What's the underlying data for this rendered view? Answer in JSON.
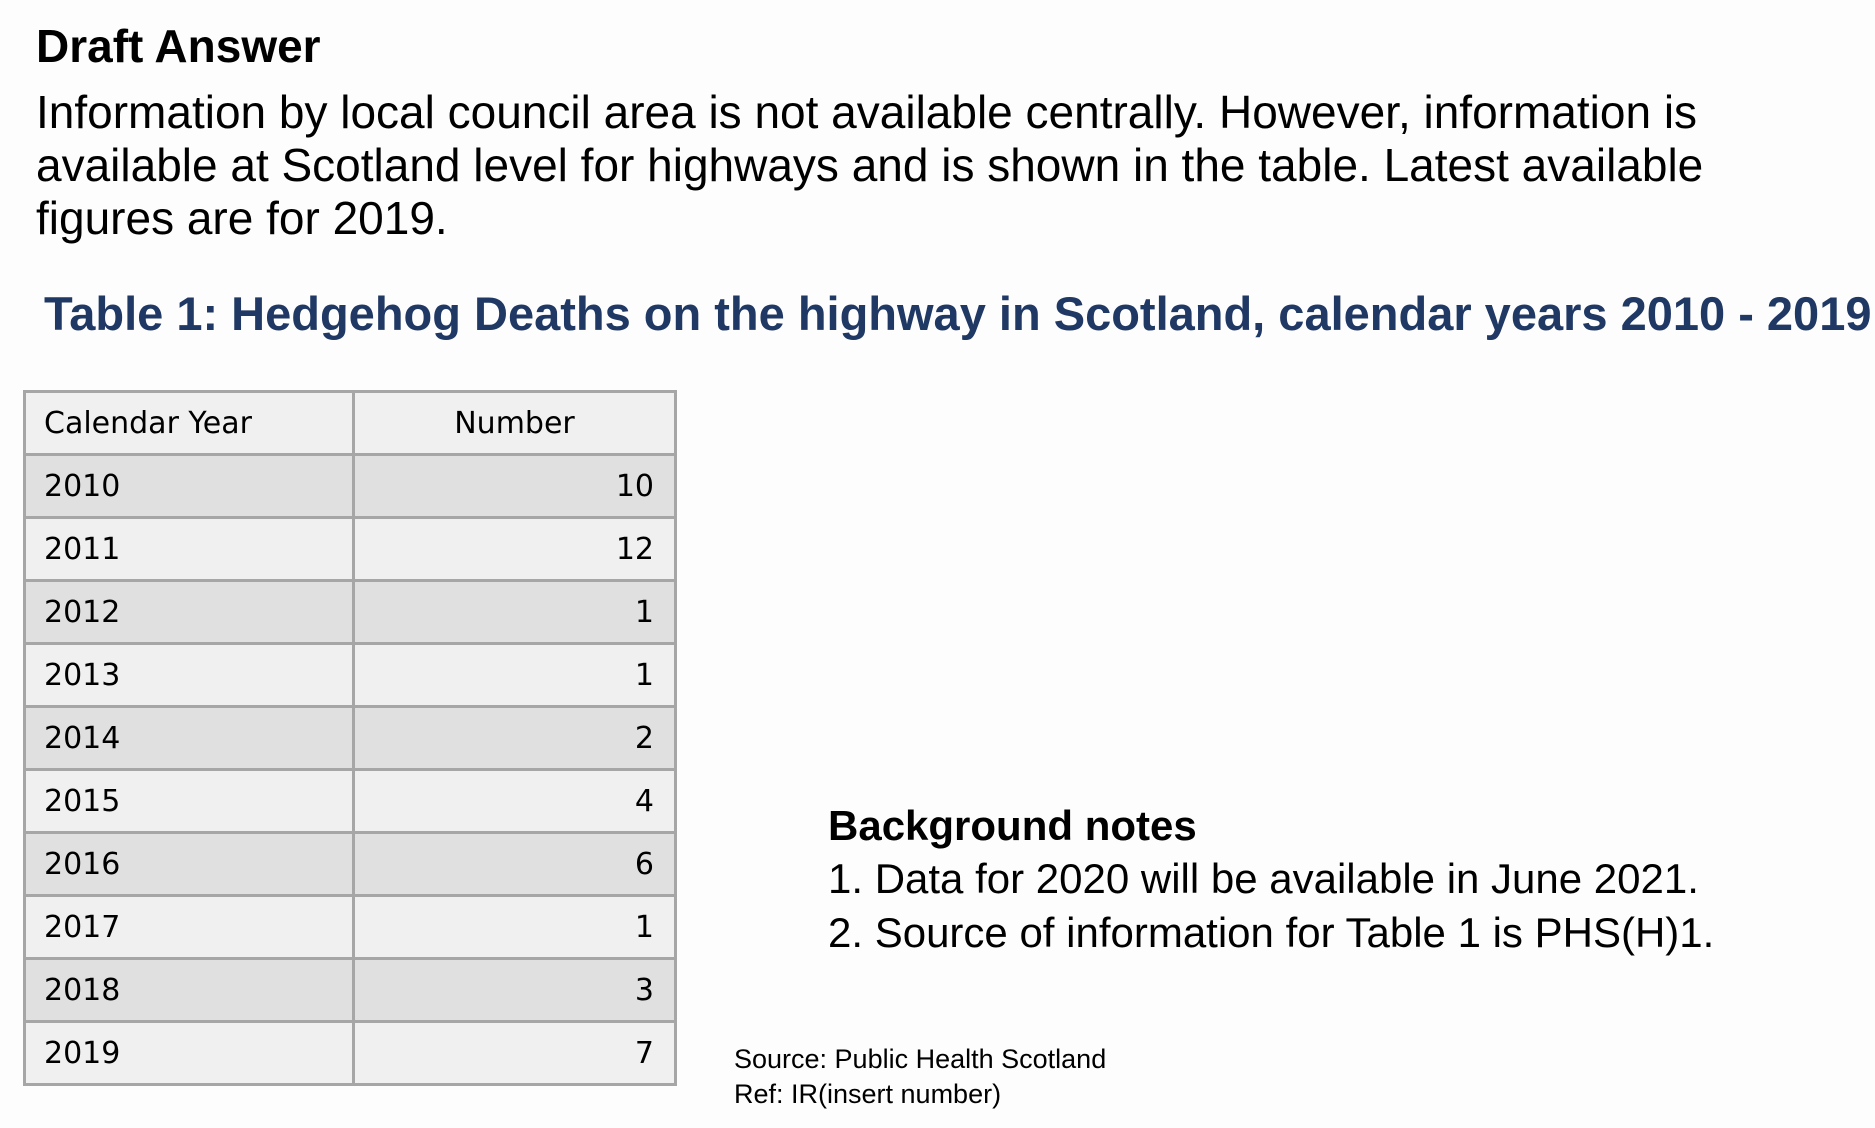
{
  "heading": "Draft Answer",
  "intro": "Information by local council area is not available centrally. However, information is available at Scotland level for highways and is shown in the table. Latest available figures are for 2019.",
  "table": {
    "title": "Table 1: Hedgehog Deaths on the highway in Scotland, calendar years 2010 - 2019",
    "headers": [
      "Calendar Year",
      "Number"
    ],
    "rows": [
      {
        "year": "2010",
        "number": "10"
      },
      {
        "year": "2011",
        "number": "12"
      },
      {
        "year": "2012",
        "number": "1"
      },
      {
        "year": "2013",
        "number": "1"
      },
      {
        "year": "2014",
        "number": "2"
      },
      {
        "year": "2015",
        "number": "4"
      },
      {
        "year": "2016",
        "number": "6"
      },
      {
        "year": "2017",
        "number": "1"
      },
      {
        "year": "2018",
        "number": "3"
      },
      {
        "year": "2019",
        "number": "7"
      }
    ]
  },
  "notes": {
    "title": "Background notes",
    "items": [
      "1. Data for 2020 will be available in June 2021.",
      "2. Source of information for Table 1 is PHS(H)1."
    ]
  },
  "source": {
    "line1": "Source: Public Health Scotland",
    "line2": "Ref: IR(insert number)"
  }
}
